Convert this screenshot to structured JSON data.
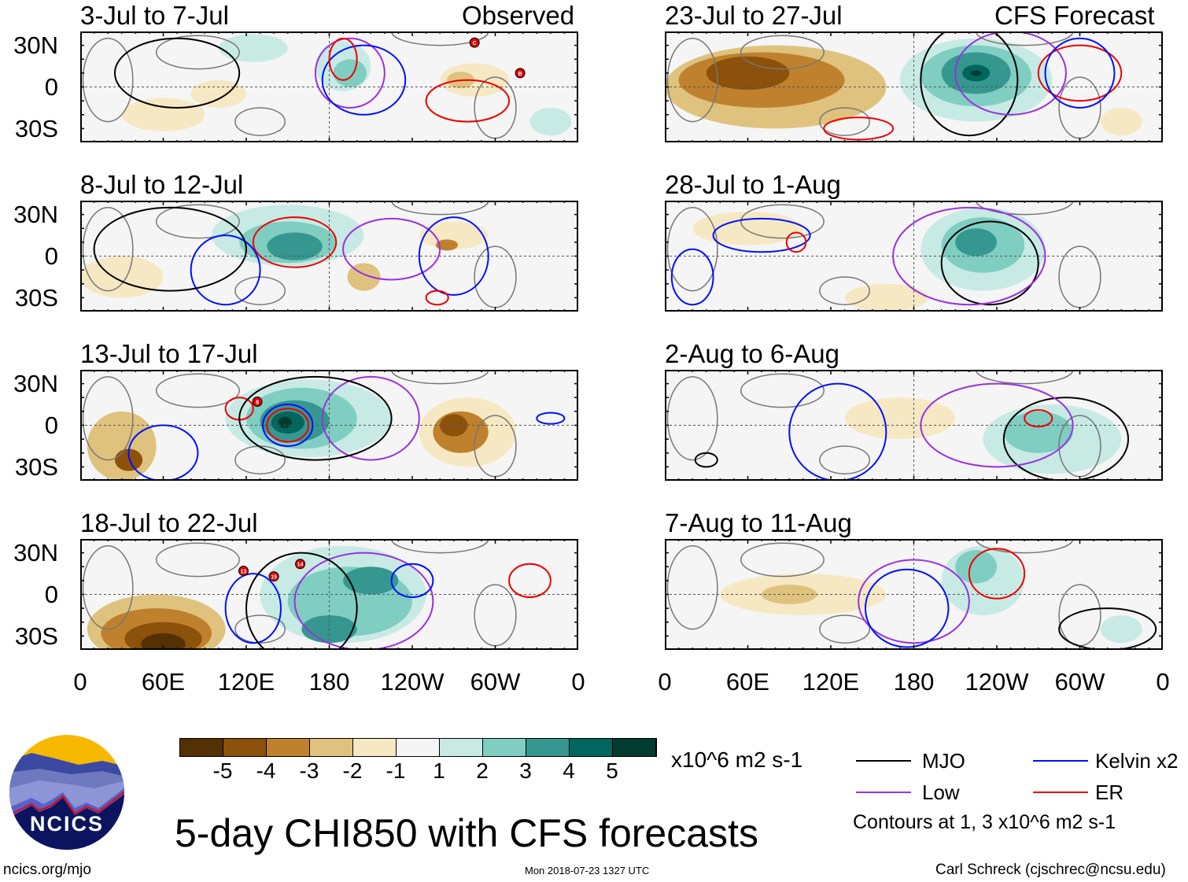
{
  "title": "5-day CHI850 with CFS forecasts",
  "observed_label": "Observed",
  "forecast_label": "CFS Forecast",
  "units": "x10^6 m2 s-1",
  "lat_labels": [
    "30N",
    "0",
    "30S"
  ],
  "lon_labels": [
    "0",
    "60E",
    "120E",
    "180",
    "120W",
    "60W",
    "0"
  ],
  "lon_values": [
    0,
    60,
    120,
    180,
    240,
    300,
    360
  ],
  "colorbar": {
    "labels": [
      "-5",
      "-4",
      "-3",
      "-2",
      "-1",
      "1",
      "2",
      "3",
      "4",
      "5"
    ],
    "colors": [
      "#543005",
      "#8c510a",
      "#bf812d",
      "#dfc27d",
      "#f6e8c3",
      "#f5f5f5",
      "#c7eae5",
      "#80cdc1",
      "#35978f",
      "#01665e",
      "#003c30"
    ]
  },
  "legend": {
    "mjo": "MJO",
    "low": "Low",
    "kelvin": "Kelvin x2",
    "er": "ER",
    "contours_note": "Contours at 1, 3 x10^6 m2 s-1",
    "colors": {
      "mjo": "#000000",
      "low": "#9b30e0",
      "kelvin": "#0010ff",
      "er": "#ee0000"
    }
  },
  "footer": {
    "url": "ncics.org/mjo",
    "timestamp": "Mon 2018-07-23 1327 UTC",
    "author": "Carl Schreck (cjschrec@ncsu.edu)"
  },
  "logo": {
    "text": "NCICS"
  },
  "panels": [
    {
      "title": "3-Jul to 7-Jul",
      "col": 0,
      "row": 0,
      "shading": [
        [
          125,
          28,
          25,
          10,
          1
        ],
        [
          190,
          15,
          20,
          18,
          1
        ],
        [
          195,
          10,
          12,
          10,
          2
        ],
        [
          285,
          5,
          25,
          12,
          -1
        ],
        [
          275,
          5,
          10,
          6,
          -2
        ],
        [
          100,
          -5,
          20,
          10,
          -1
        ],
        [
          340,
          -25,
          15,
          10,
          1
        ],
        [
          60,
          -20,
          30,
          12,
          -1
        ]
      ],
      "contours": [
        [
          70,
          10,
          45,
          25,
          "mjo"
        ],
        [
          195,
          10,
          25,
          25,
          "low"
        ],
        [
          205,
          5,
          30,
          25,
          "kelvin"
        ],
        [
          280,
          -10,
          30,
          15,
          "er"
        ],
        [
          190,
          20,
          10,
          15,
          "er"
        ]
      ],
      "storms": [
        [
          285,
          32,
          "C"
        ],
        [
          318,
          10,
          "B"
        ]
      ]
    },
    {
      "title": "8-Jul to 12-Jul",
      "col": 0,
      "row": 1,
      "shading": [
        [
          150,
          15,
          55,
          22,
          1
        ],
        [
          150,
          10,
          35,
          15,
          2
        ],
        [
          155,
          7,
          20,
          10,
          3
        ],
        [
          270,
          15,
          25,
          10,
          -1
        ],
        [
          265,
          8,
          8,
          4,
          -3
        ],
        [
          205,
          -15,
          12,
          10,
          -2
        ],
        [
          30,
          -15,
          30,
          15,
          -1
        ]
      ],
      "contours": [
        [
          155,
          10,
          30,
          18,
          "er"
        ],
        [
          225,
          5,
          35,
          22,
          "low"
        ],
        [
          270,
          0,
          25,
          28,
          "kelvin"
        ],
        [
          105,
          -10,
          25,
          25,
          "kelvin"
        ],
        [
          65,
          5,
          55,
          30,
          "mjo"
        ],
        [
          258,
          -30,
          8,
          5,
          "er"
        ]
      ],
      "storms": []
    },
    {
      "title": "13-Jul to 17-Jul",
      "col": 0,
      "row": 2,
      "shading": [
        [
          165,
          5,
          60,
          28,
          1
        ],
        [
          160,
          5,
          40,
          22,
          2
        ],
        [
          155,
          3,
          25,
          15,
          3
        ],
        [
          150,
          2,
          12,
          8,
          4
        ],
        [
          148,
          2,
          5,
          4,
          5
        ],
        [
          280,
          -5,
          35,
          25,
          -1
        ],
        [
          275,
          -5,
          20,
          15,
          -3
        ],
        [
          270,
          0,
          10,
          8,
          -4
        ],
        [
          30,
          -15,
          25,
          25,
          -2
        ],
        [
          35,
          -25,
          10,
          8,
          -4
        ]
      ],
      "contours": [
        [
          150,
          0,
          15,
          12,
          "er"
        ],
        [
          115,
          12,
          10,
          8,
          "er"
        ],
        [
          150,
          0,
          18,
          15,
          "kelvin"
        ],
        [
          210,
          5,
          35,
          30,
          "low"
        ],
        [
          170,
          5,
          55,
          30,
          "mjo"
        ],
        [
          60,
          -20,
          25,
          20,
          "kelvin"
        ],
        [
          340,
          5,
          10,
          4,
          "kelvin"
        ]
      ],
      "storms": [
        [
          128,
          17,
          "8"
        ]
      ]
    },
    {
      "title": "18-Jul to 22-Jul",
      "col": 0,
      "row": 3,
      "shading": [
        [
          55,
          -25,
          50,
          25,
          -2
        ],
        [
          55,
          -28,
          40,
          18,
          -3
        ],
        [
          60,
          -32,
          28,
          12,
          -4
        ],
        [
          60,
          -36,
          16,
          8,
          -5
        ],
        [
          190,
          0,
          60,
          35,
          1
        ],
        [
          195,
          -5,
          45,
          25,
          2
        ],
        [
          210,
          10,
          20,
          10,
          3
        ],
        [
          180,
          -25,
          20,
          10,
          3
        ]
      ],
      "contours": [
        [
          125,
          -10,
          20,
          25,
          "kelvin"
        ],
        [
          205,
          -5,
          50,
          35,
          "low"
        ],
        [
          240,
          10,
          15,
          12,
          "kelvin"
        ],
        [
          160,
          -10,
          40,
          40,
          "mjo"
        ],
        [
          325,
          10,
          15,
          12,
          "er"
        ]
      ],
      "storms": [
        [
          118,
          17,
          "13"
        ],
        [
          140,
          13,
          "15"
        ],
        [
          159,
          22,
          "14"
        ]
      ]
    },
    {
      "title": "23-Jul to 27-Jul",
      "col": 1,
      "row": 0,
      "shading": [
        [
          80,
          0,
          80,
          30,
          -2
        ],
        [
          70,
          5,
          60,
          20,
          -3
        ],
        [
          60,
          10,
          30,
          12,
          -4
        ],
        [
          225,
          5,
          55,
          30,
          1
        ],
        [
          225,
          8,
          40,
          22,
          2
        ],
        [
          225,
          10,
          25,
          15,
          3
        ],
        [
          225,
          10,
          10,
          6,
          4
        ],
        [
          225,
          10,
          4,
          2,
          5
        ],
        [
          330,
          -25,
          15,
          10,
          -1
        ]
      ],
      "contours": [
        [
          220,
          5,
          35,
          40,
          "mjo"
        ],
        [
          250,
          10,
          40,
          30,
          "low"
        ],
        [
          300,
          10,
          30,
          20,
          "er"
        ],
        [
          300,
          10,
          25,
          25,
          "kelvin"
        ],
        [
          140,
          -30,
          25,
          8,
          "er"
        ]
      ],
      "storms": []
    },
    {
      "title": "28-Jul to 1-Aug",
      "col": 1,
      "row": 1,
      "shading": [
        [
          230,
          5,
          45,
          30,
          1
        ],
        [
          230,
          8,
          30,
          20,
          2
        ],
        [
          225,
          10,
          15,
          10,
          3
        ],
        [
          60,
          20,
          40,
          12,
          -1
        ],
        [
          160,
          -30,
          30,
          10,
          -1
        ]
      ],
      "contours": [
        [
          235,
          -5,
          35,
          30,
          "mjo"
        ],
        [
          220,
          0,
          55,
          35,
          "low"
        ],
        [
          70,
          15,
          35,
          12,
          "kelvin"
        ],
        [
          20,
          -15,
          15,
          20,
          "kelvin"
        ],
        [
          95,
          10,
          7,
          7,
          "er"
        ]
      ],
      "storms": []
    },
    {
      "title": "2-Aug to 6-Aug",
      "col": 1,
      "row": 2,
      "shading": [
        [
          280,
          -10,
          50,
          25,
          1
        ],
        [
          270,
          -5,
          25,
          15,
          2
        ],
        [
          170,
          5,
          40,
          15,
          -1
        ]
      ],
      "contours": [
        [
          290,
          -10,
          45,
          30,
          "mjo"
        ],
        [
          270,
          5,
          10,
          6,
          "er"
        ],
        [
          125,
          -5,
          35,
          35,
          "kelvin"
        ],
        [
          240,
          0,
          55,
          30,
          "low"
        ],
        [
          30,
          -25,
          8,
          5,
          "mjo"
        ]
      ],
      "storms": []
    },
    {
      "title": "7-Aug to 11-Aug",
      "col": 1,
      "row": 3,
      "shading": [
        [
          100,
          0,
          60,
          15,
          -1
        ],
        [
          90,
          0,
          20,
          7,
          -2
        ],
        [
          230,
          10,
          30,
          25,
          1
        ],
        [
          225,
          20,
          15,
          12,
          2
        ],
        [
          330,
          -25,
          15,
          10,
          1
        ]
      ],
      "contours": [
        [
          240,
          15,
          20,
          18,
          "er"
        ],
        [
          180,
          -5,
          40,
          30,
          "low"
        ],
        [
          175,
          -10,
          30,
          28,
          "kelvin"
        ],
        [
          320,
          -25,
          35,
          15,
          "mjo"
        ]
      ],
      "storms": []
    }
  ]
}
